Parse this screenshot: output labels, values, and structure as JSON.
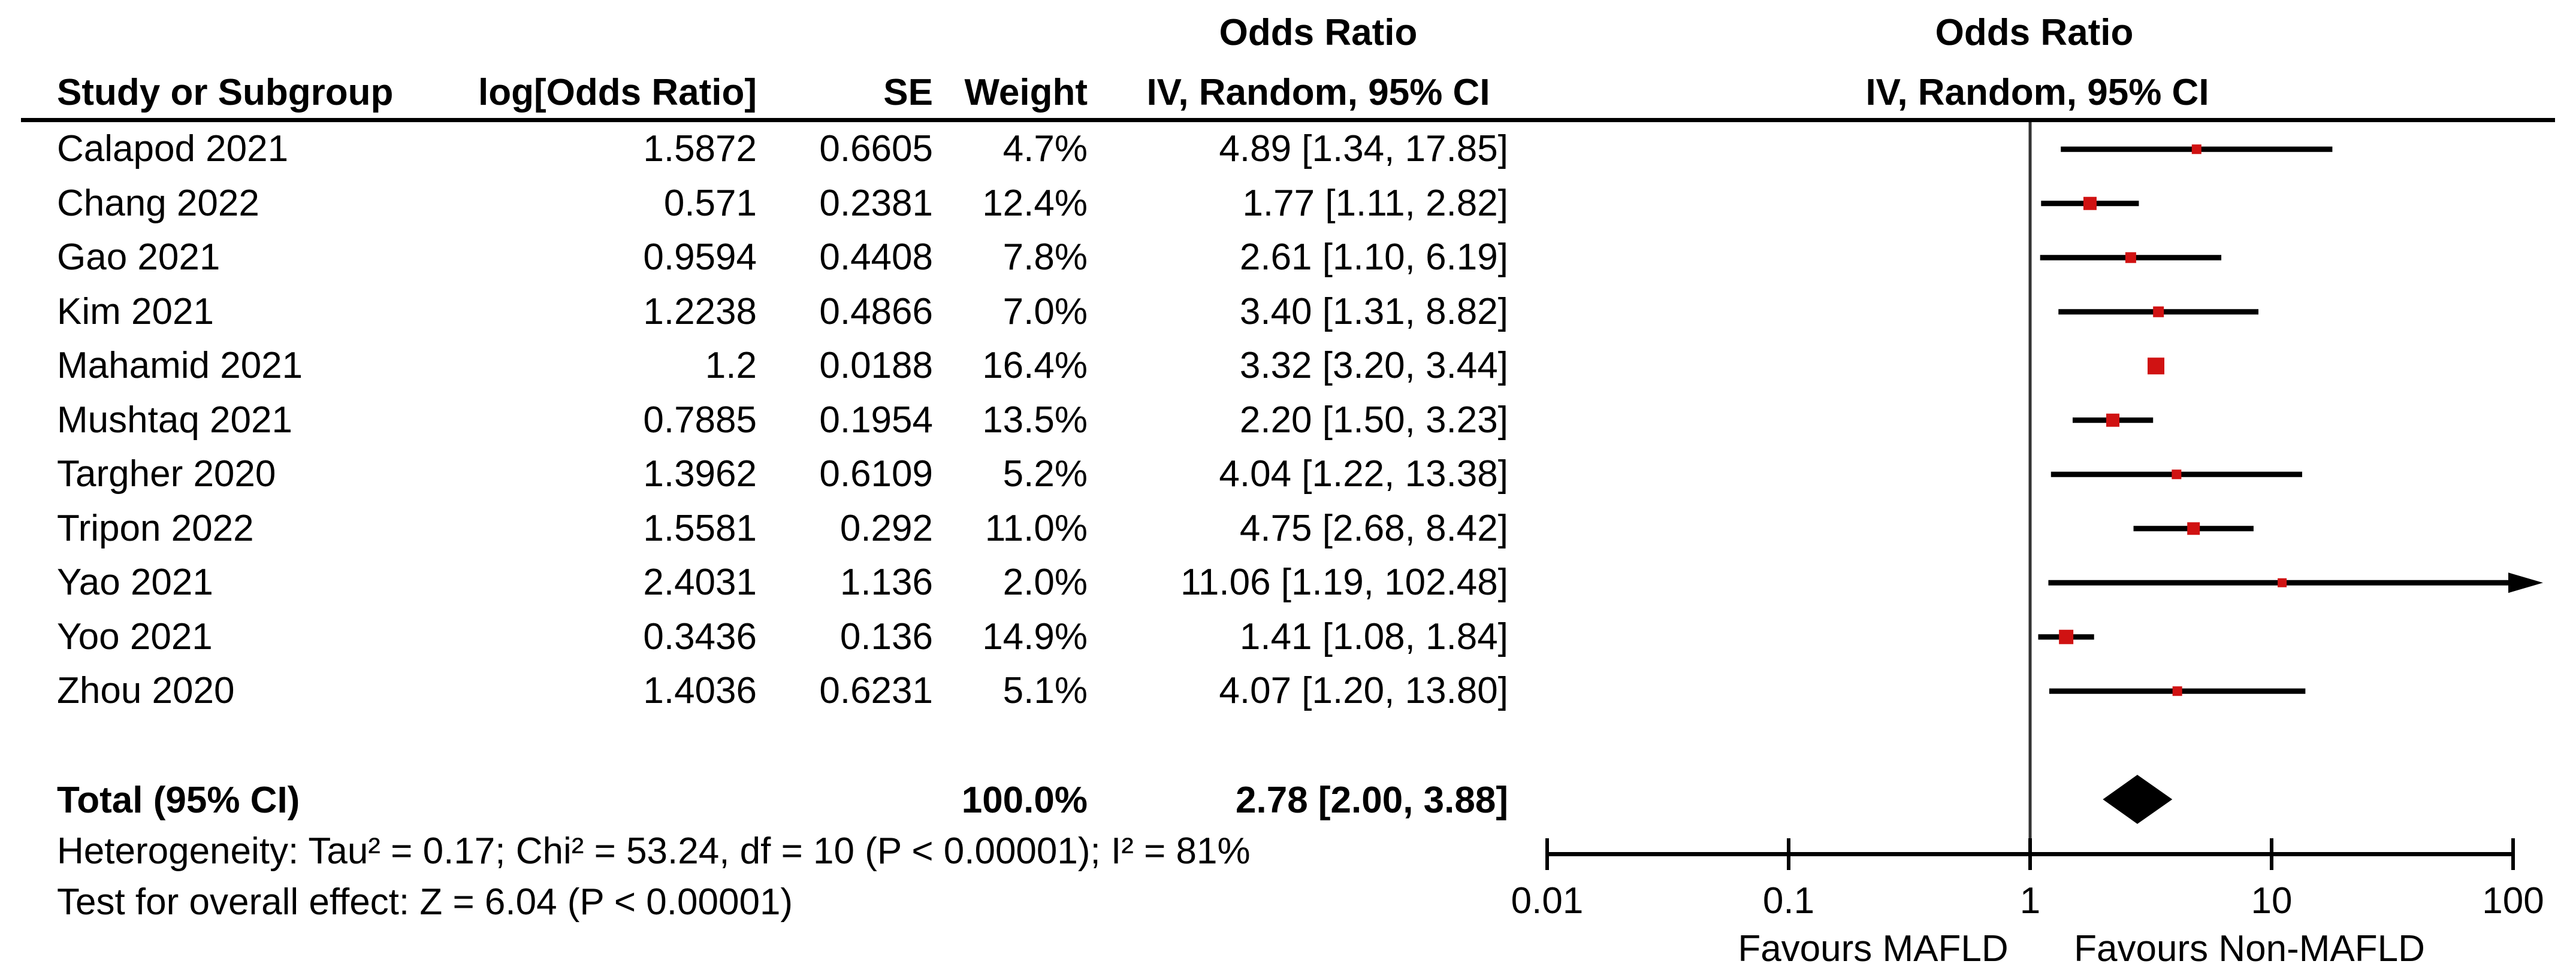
{
  "header": {
    "study": "Study or Subgroup",
    "log_or": "log[Odds Ratio]",
    "se": "SE",
    "weight": "Weight",
    "stat_or": "Odds Ratio",
    "stat_ci": "IV, Random, 95% CI",
    "plot_or": "Odds Ratio",
    "plot_ci": "IV, Random, 95% CI"
  },
  "footer": {
    "heterogeneity": "Heterogeneity: Tau² = 0.17; Chi² = 53.24, df = 10 (P < 0.00001); I² = 81%",
    "overall_effect": "Test for overall effect: Z = 6.04 (P < 0.00001)"
  },
  "colors": {
    "marker": "#D01212",
    "line": "#000000",
    "null_line": "#333333"
  },
  "chart_data": {
    "type": "scatter",
    "variant": "forest-plot-meta-analysis",
    "effect_measure": "Odds Ratio",
    "model": "IV, Random, 95% CI",
    "x_scale": "log10",
    "x_ticks": [
      0.01,
      0.1,
      1,
      10,
      100
    ],
    "x_tick_labels": [
      "0.01",
      "0.1",
      "1",
      "10",
      "100"
    ],
    "null_line_at": 1,
    "favours_left": "Favours MAFLD",
    "favours_right": "Favours Non-MAFLD",
    "studies": [
      {
        "name": "Calapod 2021",
        "log_or_text": "1.5872",
        "se_text": "0.6605",
        "weight_text": "4.7%",
        "ci_text": "4.89 [1.34, 17.85]",
        "or": 4.89,
        "ci_low": 1.34,
        "ci_high": 17.85,
        "weight_pct": 4.7,
        "marker_px": 16
      },
      {
        "name": "Chang 2022",
        "log_or_text": "0.571",
        "se_text": "0.2381",
        "weight_text": "12.4%",
        "ci_text": "1.77 [1.11, 2.82]",
        "or": 1.77,
        "ci_low": 1.11,
        "ci_high": 2.82,
        "weight_pct": 12.4,
        "marker_px": 22
      },
      {
        "name": "Gao 2021",
        "log_or_text": "0.9594",
        "se_text": "0.4408",
        "weight_text": "7.8%",
        "ci_text": "2.61 [1.10, 6.19]",
        "or": 2.61,
        "ci_low": 1.1,
        "ci_high": 6.19,
        "weight_pct": 7.8,
        "marker_px": 18
      },
      {
        "name": "Kim 2021",
        "log_or_text": "1.2238",
        "se_text": "0.4866",
        "weight_text": "7.0%",
        "ci_text": "3.40 [1.31, 8.82]",
        "or": 3.4,
        "ci_low": 1.31,
        "ci_high": 8.82,
        "weight_pct": 7.0,
        "marker_px": 18
      },
      {
        "name": "Mahamid 2021",
        "log_or_text": "1.2",
        "se_text": "0.0188",
        "weight_text": "16.4%",
        "ci_text": "3.32 [3.20, 3.44]",
        "or": 3.32,
        "ci_low": 3.2,
        "ci_high": 3.44,
        "weight_pct": 16.4,
        "marker_px": 28
      },
      {
        "name": "Mushtaq 2021",
        "log_or_text": "0.7885",
        "se_text": "0.1954",
        "weight_text": "13.5%",
        "ci_text": "2.20 [1.50, 3.23]",
        "or": 2.2,
        "ci_low": 1.5,
        "ci_high": 3.23,
        "weight_pct": 13.5,
        "marker_px": 22
      },
      {
        "name": "Targher 2020",
        "log_or_text": "1.3962",
        "se_text": "0.6109",
        "weight_text": "5.2%",
        "ci_text": "4.04 [1.22, 13.38]",
        "or": 4.04,
        "ci_low": 1.22,
        "ci_high": 13.38,
        "weight_pct": 5.2,
        "marker_px": 16
      },
      {
        "name": "Tripon 2022",
        "log_or_text": "1.5581",
        "se_text": "0.292",
        "weight_text": "11.0%",
        "ci_text": "4.75 [2.68, 8.42]",
        "or": 4.75,
        "ci_low": 2.68,
        "ci_high": 8.42,
        "weight_pct": 11.0,
        "marker_px": 21
      },
      {
        "name": "Yao 2021",
        "log_or_text": "2.4031",
        "se_text": "1.136",
        "weight_text": "2.0%",
        "ci_text": "11.06 [1.19, 102.48]",
        "or": 11.06,
        "ci_low": 1.19,
        "ci_high": 102.48,
        "weight_pct": 2.0,
        "marker_px": 15
      },
      {
        "name": "Yoo 2021",
        "log_or_text": "0.3436",
        "se_text": "0.136",
        "weight_text": "14.9%",
        "ci_text": "1.41 [1.08, 1.84]",
        "or": 1.41,
        "ci_low": 1.08,
        "ci_high": 1.84,
        "weight_pct": 14.9,
        "marker_px": 24
      },
      {
        "name": "Zhou 2020",
        "log_or_text": "1.4036",
        "se_text": "0.6231",
        "weight_text": "5.1%",
        "ci_text": "4.07 [1.20, 13.80]",
        "or": 4.07,
        "ci_low": 1.2,
        "ci_high": 13.8,
        "weight_pct": 5.1,
        "marker_px": 16
      }
    ],
    "summary": {
      "label": "Total (95% CI)",
      "weight_text": "100.0%",
      "ci_text": "2.78 [2.00, 3.88]",
      "or": 2.78,
      "ci_low": 2.0,
      "ci_high": 3.88
    }
  }
}
